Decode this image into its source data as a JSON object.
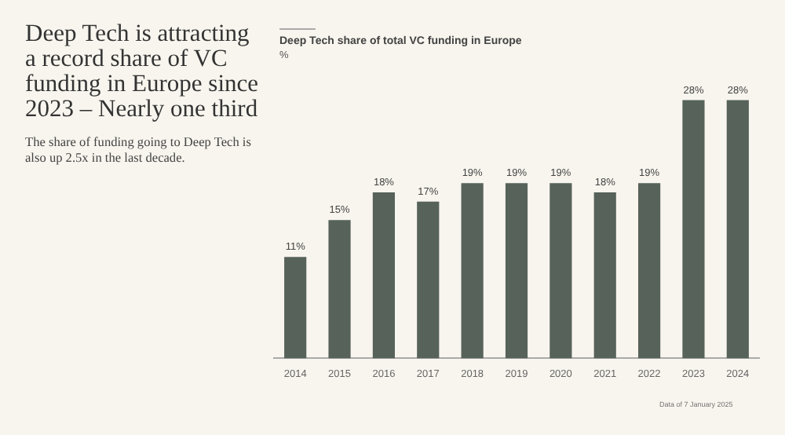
{
  "chart_data": {
    "type": "bar",
    "title": "Deep Tech is attracting a record share of VC funding in Europe since 2023 – Nearly one third",
    "subtitle": "The share of funding going to Deep Tech is also up 2.5x in the last decade.",
    "ylabel": "%",
    "annotations": [
      "Deep Tech share of total VC funding in Europe",
      "Data of 7 January 2025"
    ],
    "categories": [
      "2014",
      "2015",
      "2016",
      "2017",
      "2018",
      "2019",
      "2020",
      "2021",
      "2022",
      "2023",
      "2024"
    ],
    "values": [
      11,
      15,
      18,
      17,
      19,
      19,
      19,
      18,
      19,
      28,
      28
    ],
    "color": "#56625a",
    "value_labels": [
      "11%",
      "15%",
      "18%",
      "17%",
      "19%",
      "19%",
      "19%",
      "18%",
      "19%",
      "28%",
      "28%"
    ],
    "grid": false,
    "legend": false
  }
}
